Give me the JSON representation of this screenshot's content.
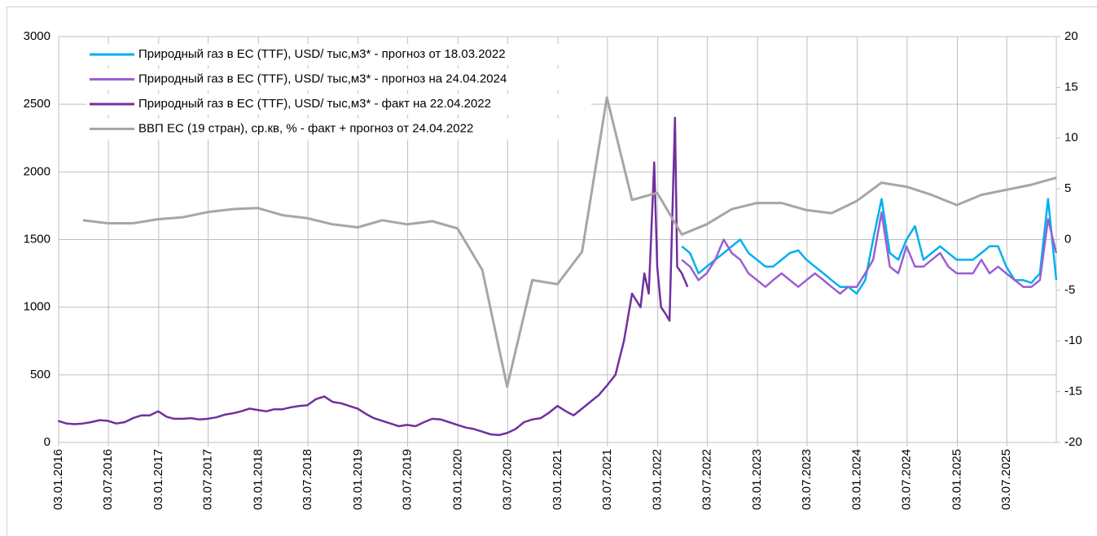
{
  "chart_data": {
    "type": "line",
    "legend": "upper left",
    "grid": true,
    "xlim": [
      "03.01.2016",
      "31.12.2025"
    ],
    "xticks": [
      "03.01.2016",
      "03.07.2016",
      "03.01.2017",
      "03.07.2017",
      "03.01.2018",
      "03.07.2018",
      "03.01.2019",
      "03.07.2019",
      "03.01.2020",
      "03.07.2020",
      "03.01.2021",
      "03.07.2021",
      "03.01.2022",
      "03.07.2022",
      "03.01.2023",
      "03.07.2023",
      "03.01.2024",
      "03.07.2024",
      "03.01.2025",
      "03.07.2025"
    ],
    "ylim": [
      0,
      3000
    ],
    "yticks": [
      0,
      500,
      1000,
      1500,
      2000,
      2500,
      3000
    ],
    "y2lim": [
      -20,
      20
    ],
    "y2ticks": [
      -20,
      -15,
      -10,
      -5,
      0,
      5,
      10,
      15,
      20
    ],
    "series": [
      {
        "name": "Природный газ в ЕС (TTF), USD/ тыс,м3* - прогноз от 18.03.2022",
        "color": "#00b0f0",
        "x": [
          "01.04.2022",
          "01.05.2022",
          "01.06.2022",
          "01.07.2022",
          "01.08.2022",
          "01.09.2022",
          "01.10.2022",
          "01.11.2022",
          "01.12.2022",
          "01.01.2023",
          "01.02.2023",
          "01.03.2023",
          "01.04.2023",
          "01.05.2023",
          "01.06.2023",
          "01.07.2023",
          "01.08.2023",
          "01.09.2023",
          "01.10.2023",
          "01.11.2023",
          "01.12.2023",
          "01.01.2024",
          "01.02.2024",
          "01.03.2024",
          "01.04.2024",
          "01.05.2024",
          "01.06.2024",
          "01.07.2024",
          "01.08.2024",
          "01.09.2024",
          "01.10.2024",
          "01.11.2024",
          "01.12.2024",
          "01.01.2025",
          "01.02.2025",
          "01.03.2025",
          "01.04.2025",
          "01.05.2025",
          "01.06.2025",
          "01.07.2025",
          "01.08.2025",
          "01.09.2025",
          "01.10.2025",
          "01.11.2025",
          "01.12.2025",
          "31.12.2025"
        ],
        "values": [
          1450,
          1400,
          1250,
          1300,
          1350,
          1400,
          1450,
          1500,
          1400,
          1350,
          1300,
          1300,
          1350,
          1400,
          1420,
          1350,
          1300,
          1250,
          1200,
          1150,
          1150,
          1100,
          1200,
          1500,
          1800,
          1400,
          1350,
          1500,
          1600,
          1350,
          1400,
          1450,
          1400,
          1350,
          1350,
          1350,
          1400,
          1450,
          1450,
          1300,
          1200,
          1200,
          1180,
          1250,
          1800,
          1200
        ]
      },
      {
        "name": "Природный газ в ЕС (TTF), USD/ тыс,м3* - прогноз на 24.04.2024",
        "color": "#9b5fd4",
        "x": [
          "01.04.2022",
          "01.05.2022",
          "01.06.2022",
          "01.07.2022",
          "01.08.2022",
          "01.09.2022",
          "01.10.2022",
          "01.11.2022",
          "01.12.2022",
          "01.01.2023",
          "01.02.2023",
          "01.03.2023",
          "01.04.2023",
          "01.05.2023",
          "01.06.2023",
          "01.07.2023",
          "01.08.2023",
          "01.09.2023",
          "01.10.2023",
          "01.11.2023",
          "01.12.2023",
          "01.01.2024",
          "01.02.2024",
          "01.03.2024",
          "01.04.2024",
          "01.05.2024",
          "01.06.2024",
          "01.07.2024",
          "01.08.2024",
          "01.09.2024",
          "01.10.2024",
          "01.11.2024",
          "01.12.2024",
          "01.01.2025",
          "01.02.2025",
          "01.03.2025",
          "01.04.2025",
          "01.05.2025",
          "01.06.2025",
          "01.07.2025",
          "01.08.2025",
          "01.09.2025",
          "01.10.2025",
          "01.11.2025",
          "01.12.2025",
          "31.12.2025"
        ],
        "values": [
          1350,
          1300,
          1200,
          1250,
          1350,
          1500,
          1400,
          1350,
          1250,
          1200,
          1150,
          1200,
          1250,
          1200,
          1150,
          1200,
          1250,
          1200,
          1150,
          1100,
          1150,
          1150,
          1250,
          1350,
          1700,
          1300,
          1250,
          1450,
          1300,
          1300,
          1350,
          1400,
          1300,
          1250,
          1250,
          1250,
          1350,
          1250,
          1300,
          1250,
          1200,
          1150,
          1150,
          1200,
          1650,
          1400
        ]
      },
      {
        "name": "Природный газ в ЕС (TTF), USD/ тыс,м3* - факт на 22.04.2022",
        "color": "#7030a0",
        "x": [
          "01.01.2016",
          "01.02.2016",
          "01.03.2016",
          "01.04.2016",
          "01.05.2016",
          "01.06.2016",
          "01.07.2016",
          "01.08.2016",
          "01.09.2016",
          "01.10.2016",
          "01.11.2016",
          "01.12.2016",
          "01.01.2017",
          "01.02.2017",
          "01.03.2017",
          "01.04.2017",
          "01.05.2017",
          "01.06.2017",
          "01.07.2017",
          "01.08.2017",
          "01.09.2017",
          "01.10.2017",
          "01.11.2017",
          "01.12.2017",
          "01.01.2018",
          "01.02.2018",
          "01.03.2018",
          "01.04.2018",
          "01.05.2018",
          "01.06.2018",
          "01.07.2018",
          "01.08.2018",
          "01.09.2018",
          "01.10.2018",
          "01.11.2018",
          "01.12.2018",
          "01.01.2019",
          "01.02.2019",
          "01.03.2019",
          "01.04.2019",
          "01.05.2019",
          "01.06.2019",
          "01.07.2019",
          "01.08.2019",
          "01.09.2019",
          "01.10.2019",
          "01.11.2019",
          "01.12.2019",
          "01.01.2020",
          "01.02.2020",
          "01.03.2020",
          "01.04.2020",
          "01.05.2020",
          "01.06.2020",
          "01.07.2020",
          "01.08.2020",
          "01.09.2020",
          "01.10.2020",
          "01.11.2020",
          "01.12.2020",
          "01.01.2021",
          "01.02.2021",
          "01.03.2021",
          "01.04.2021",
          "01.05.2021",
          "01.06.2021",
          "01.07.2021",
          "01.08.2021",
          "01.09.2021",
          "01.10.2021",
          "01.11.2021",
          "15.11.2021",
          "01.12.2021",
          "21.12.2021",
          "01.01.2022",
          "15.01.2022",
          "01.02.2022",
          "15.02.2022",
          "07.03.2022",
          "15.03.2022",
          "01.04.2022",
          "22.04.2022"
        ],
        "values": [
          160,
          140,
          135,
          140,
          150,
          165,
          160,
          140,
          150,
          180,
          200,
          200,
          230,
          190,
          175,
          175,
          180,
          170,
          175,
          185,
          205,
          215,
          230,
          250,
          240,
          230,
          245,
          245,
          260,
          270,
          275,
          320,
          340,
          300,
          290,
          270,
          250,
          210,
          180,
          160,
          140,
          120,
          130,
          120,
          150,
          175,
          170,
          150,
          130,
          110,
          100,
          80,
          60,
          55,
          70,
          100,
          150,
          170,
          180,
          220,
          270,
          230,
          200,
          250,
          300,
          350,
          420,
          500,
          750,
          1100,
          1000,
          1250,
          1100,
          2070,
          1300,
          1000,
          950,
          900,
          2400,
          1300,
          1250,
          1150
        ]
      },
      {
        "name": "ВВП ЕС (19 стран), ср.кв, % - факт + прогноз от 24.04.2022",
        "color": "#a6a6a6",
        "axis": "y2",
        "x": [
          "01.04.2016",
          "01.07.2016",
          "01.10.2016",
          "01.01.2017",
          "01.04.2017",
          "01.07.2017",
          "01.10.2017",
          "01.01.2018",
          "01.04.2018",
          "01.07.2018",
          "01.10.2018",
          "01.01.2019",
          "01.04.2019",
          "01.07.2019",
          "01.10.2019",
          "01.01.2020",
          "01.04.2020",
          "01.07.2020",
          "01.10.2020",
          "01.01.2021",
          "01.04.2021",
          "01.07.2021",
          "01.10.2021",
          "01.01.2022",
          "01.04.2022",
          "01.07.2022",
          "01.10.2022",
          "01.01.2023",
          "01.04.2023",
          "01.07.2023",
          "01.10.2023",
          "01.01.2024",
          "01.04.2024",
          "01.07.2024",
          "01.10.2024",
          "01.01.2025",
          "01.04.2025",
          "01.07.2025",
          "01.10.2025",
          "01.01.2026"
        ],
        "values": [
          1.9,
          1.6,
          1.6,
          2.0,
          2.2,
          2.7,
          3.0,
          3.1,
          2.4,
          2.1,
          1.5,
          1.2,
          1.9,
          1.5,
          1.8,
          1.1,
          -3.0,
          -14.5,
          -4.0,
          -4.4,
          -1.2,
          14.0,
          3.9,
          4.6,
          0.5,
          1.5,
          3.0,
          3.6,
          3.6,
          2.9,
          2.6,
          3.8,
          5.6,
          5.2,
          4.4,
          3.4,
          4.4,
          4.9,
          5.4,
          6.1
        ]
      }
    ]
  }
}
